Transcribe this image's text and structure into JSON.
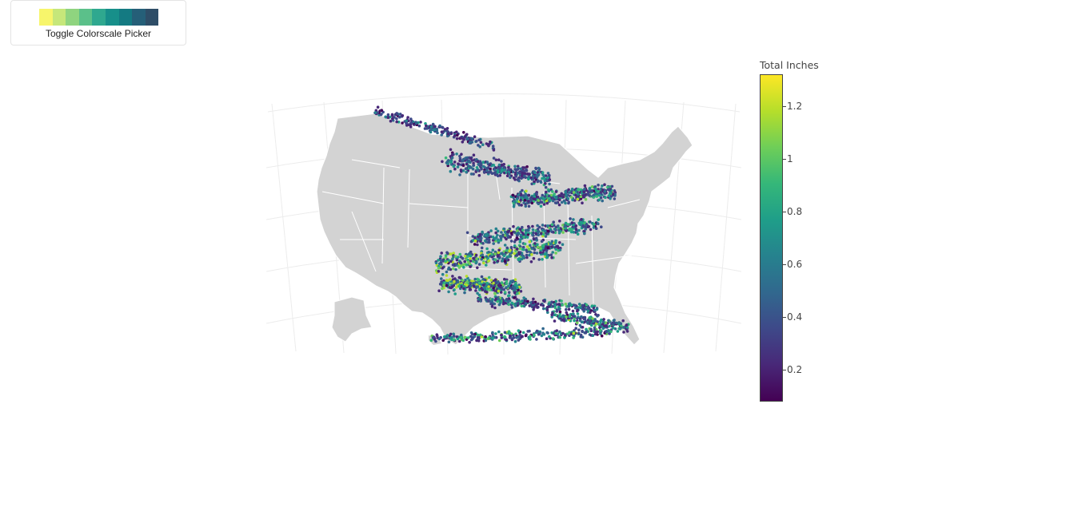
{
  "colorscale_picker": {
    "label": "Toggle Colorscale Picker",
    "swatches": [
      "#f7f56b",
      "#c6e77a",
      "#8fd47f",
      "#5bc08a",
      "#2fa88f",
      "#178f8a",
      "#147a82",
      "#255f78",
      "#2e4d67"
    ]
  },
  "map": {
    "projection": "albers-usa",
    "land_color": "#d3d3d3",
    "border_color": "#ffffff",
    "graticule_color": "#ececec"
  },
  "colorbar": {
    "title": "Total Inches",
    "min": 0.08,
    "max": 1.32,
    "ticks": [
      {
        "value": 0.2,
        "label": "0.2"
      },
      {
        "value": 0.4,
        "label": "0.4"
      },
      {
        "value": 0.6,
        "label": "0.6"
      },
      {
        "value": 0.8,
        "label": "0.8"
      },
      {
        "value": 1.0,
        "label": "1"
      },
      {
        "value": 1.2,
        "label": "1.2"
      }
    ]
  },
  "colors": {
    "viridis": [
      "#440154",
      "#482878",
      "#3e4989",
      "#31688e",
      "#26828e",
      "#1f9e89",
      "#35b779",
      "#6ece58",
      "#b5de2b",
      "#fde725"
    ]
  }
}
